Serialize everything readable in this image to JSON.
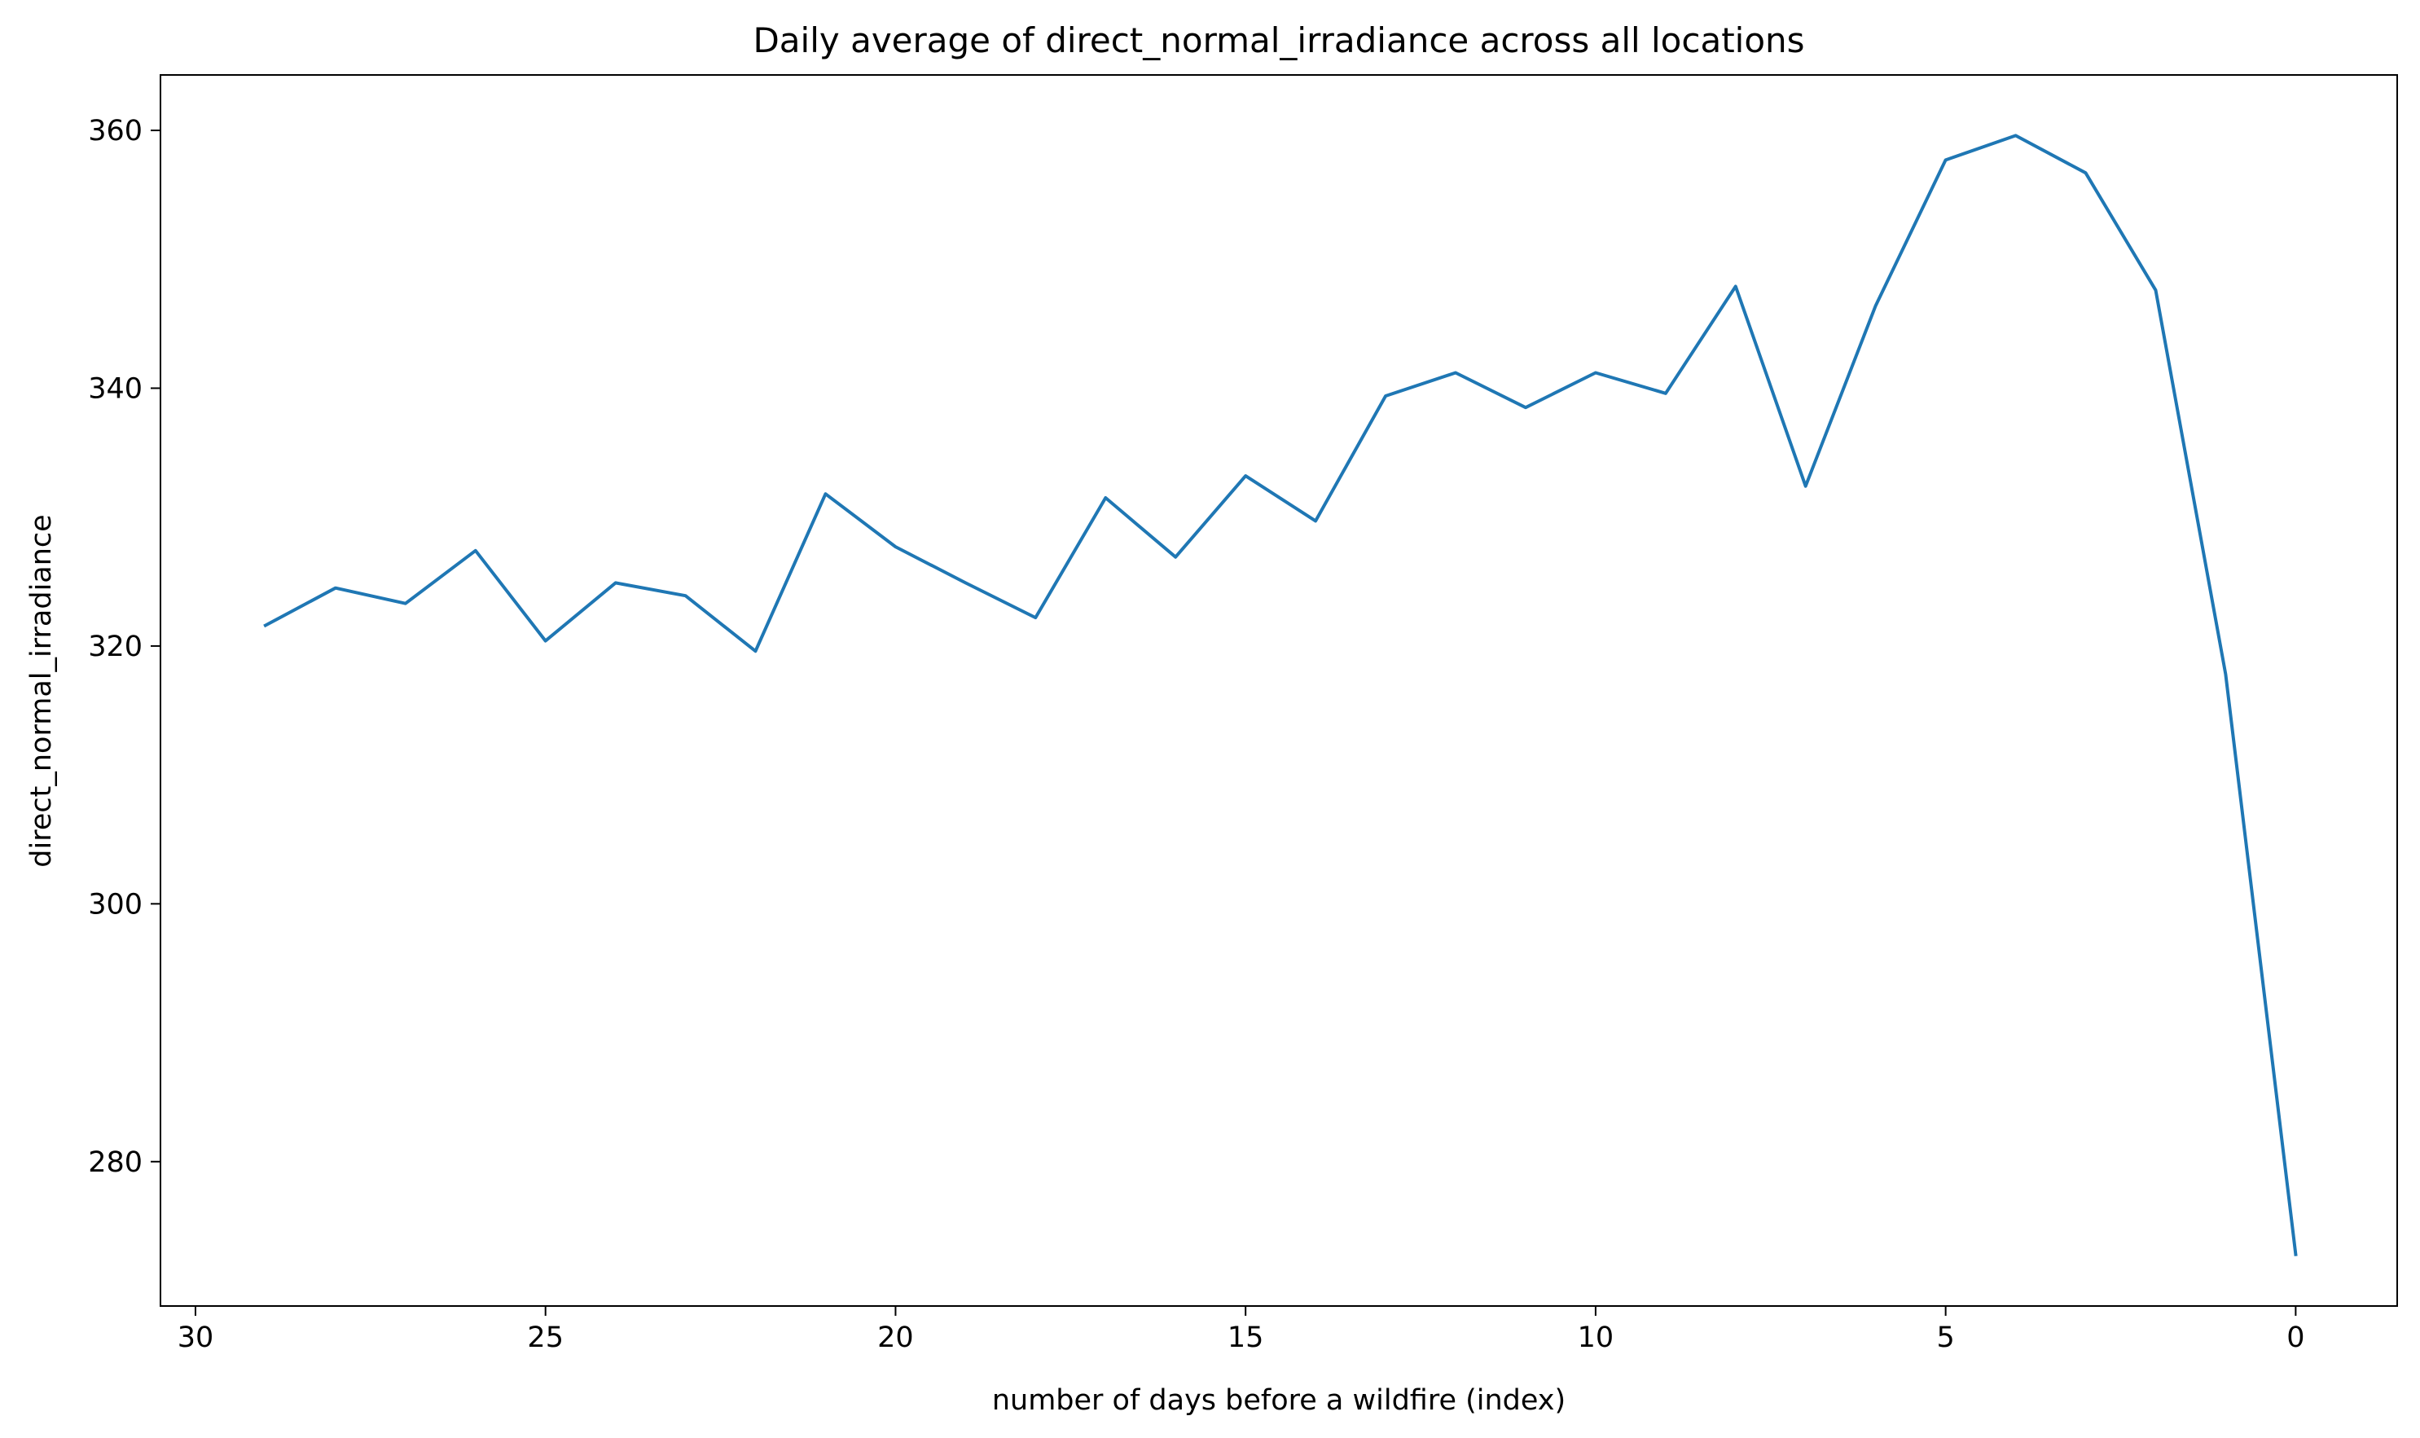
{
  "chart_data": {
    "type": "line",
    "title": "Daily average of direct_normal_irradiance across all locations",
    "xlabel": "number of days before a wildfire (index)",
    "ylabel": "direct_normal_irradiance",
    "x_inverted": true,
    "xlim": [
      30.5,
      -1.45
    ],
    "ylim": [
      268.8,
      364.3
    ],
    "xticks": [
      30,
      25,
      20,
      15,
      10,
      5,
      0
    ],
    "yticks": [
      280,
      300,
      320,
      340,
      360
    ],
    "grid": false,
    "line_color": "#1f77b4",
    "series": [
      {
        "x": [
          29,
          28,
          27,
          26,
          25,
          24,
          23,
          22,
          21,
          20,
          19,
          18,
          17,
          16,
          15,
          14,
          13,
          12,
          11,
          10,
          9,
          8,
          7,
          6,
          5,
          4,
          3,
          2,
          1,
          0
        ],
        "values": [
          321.6,
          324.5,
          323.3,
          327.4,
          320.4,
          324.9,
          323.9,
          319.6,
          331.8,
          327.7,
          324.9,
          322.2,
          331.5,
          326.9,
          333.2,
          329.7,
          339.4,
          341.2,
          338.5,
          341.2,
          339.6,
          347.9,
          332.4,
          346.4,
          357.7,
          359.6,
          356.7,
          347.6,
          317.8,
          272.8
        ]
      }
    ]
  }
}
